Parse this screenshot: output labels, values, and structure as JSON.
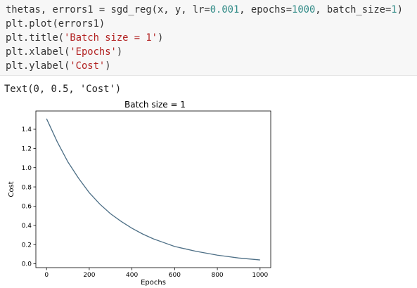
{
  "code_cell": {
    "lines": [
      [
        {
          "t": "thetas, errors1 = sgd_reg(x, y, lr=",
          "c": "plain"
        },
        {
          "t": "0.001",
          "c": "num"
        },
        {
          "t": ", epochs=",
          "c": "plain"
        },
        {
          "t": "1000",
          "c": "num"
        },
        {
          "t": ", batch_size=",
          "c": "plain"
        },
        {
          "t": "1",
          "c": "num"
        },
        {
          "t": ")",
          "c": "plain"
        }
      ],
      [
        {
          "t": "plt.plot(errors1)",
          "c": "plain"
        }
      ],
      [
        {
          "t": "plt.title(",
          "c": "plain"
        },
        {
          "t": "'Batch size = 1'",
          "c": "str"
        },
        {
          "t": ")",
          "c": "plain"
        }
      ],
      [
        {
          "t": "plt.xlabel(",
          "c": "plain"
        },
        {
          "t": "'Epochs'",
          "c": "str"
        },
        {
          "t": ")",
          "c": "plain"
        }
      ],
      [
        {
          "t": "plt.ylabel(",
          "c": "plain"
        },
        {
          "t": "'Cost'",
          "c": "str"
        },
        {
          "t": ")",
          "c": "plain"
        }
      ]
    ]
  },
  "output": {
    "text": "Text(0, 0.5, 'Cost')"
  },
  "colors": {
    "cell_background": "#f7f7f7",
    "number": "#2f8a86",
    "string": "#b22222",
    "line": "#4d6f86"
  },
  "chart_data": {
    "type": "line",
    "title": "Batch size = 1",
    "xlabel": "Epochs",
    "ylabel": "Cost",
    "xlim": [
      -50,
      1050
    ],
    "ylim": [
      -0.04,
      1.59
    ],
    "xticks": [
      "0",
      "200",
      "400",
      "600",
      "800",
      "1000"
    ],
    "xtick_values": [
      0,
      200,
      400,
      600,
      800,
      1000
    ],
    "yticks": [
      "0.0",
      "0.2",
      "0.4",
      "0.6",
      "0.8",
      "1.0",
      "1.2",
      "1.4"
    ],
    "ytick_values": [
      0.0,
      0.2,
      0.4,
      0.6,
      0.8,
      1.0,
      1.2,
      1.4
    ],
    "grid": false,
    "legend": "none",
    "series": [
      {
        "x": [
          0,
          50,
          100,
          150,
          200,
          250,
          300,
          350,
          400,
          450,
          500,
          550,
          600,
          650,
          700,
          750,
          800,
          850,
          900,
          950,
          1000
        ],
        "values": [
          1.51,
          1.27,
          1.06,
          0.89,
          0.74,
          0.62,
          0.52,
          0.44,
          0.37,
          0.31,
          0.26,
          0.22,
          0.18,
          0.155,
          0.13,
          0.11,
          0.09,
          0.075,
          0.06,
          0.05,
          0.04
        ]
      }
    ]
  }
}
